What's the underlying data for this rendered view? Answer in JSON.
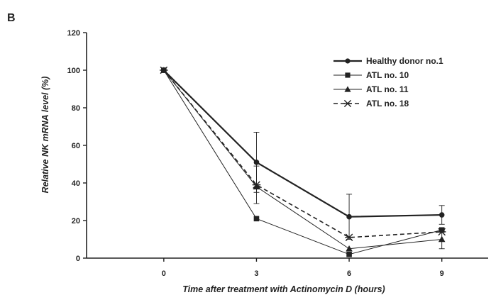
{
  "panel_label": "B",
  "chart_data": {
    "type": "line",
    "xlabel": "Time after treatment with Actinomycin D (hours)",
    "ylabel": "Relative NK mRNA level (%)",
    "x": [
      0,
      3,
      6,
      9
    ],
    "xlim": [
      -2.5,
      10.5
    ],
    "ylim": [
      0,
      120
    ],
    "xticks": [
      "0",
      "3",
      "6",
      "9"
    ],
    "yticks": [
      "0",
      "20",
      "40",
      "60",
      "80",
      "100",
      "120"
    ],
    "grid": false,
    "legend_position": "top-right",
    "series": [
      {
        "name": "Healthy donor no.1",
        "values": [
          100,
          51,
          22,
          23
        ],
        "errors": [
          0,
          16,
          12,
          5
        ],
        "marker": "circle",
        "line": "solid-thick",
        "color": "#222222"
      },
      {
        "name": "ATL no. 10",
        "values": [
          100,
          21,
          2,
          15
        ],
        "errors": [
          0,
          0,
          0,
          0
        ],
        "marker": "square",
        "line": "solid-thin",
        "color": "#222222"
      },
      {
        "name": "ATL no. 11",
        "values": [
          100,
          38,
          5,
          10
        ],
        "errors": [
          0,
          0,
          0,
          5
        ],
        "marker": "triangle",
        "line": "solid-thin",
        "color": "#222222"
      },
      {
        "name": "ATL no. 18",
        "values": [
          100,
          39,
          11,
          14
        ],
        "errors": [
          0,
          10,
          0,
          0
        ],
        "marker": "asterisk",
        "line": "dashed",
        "color": "#222222"
      }
    ]
  }
}
